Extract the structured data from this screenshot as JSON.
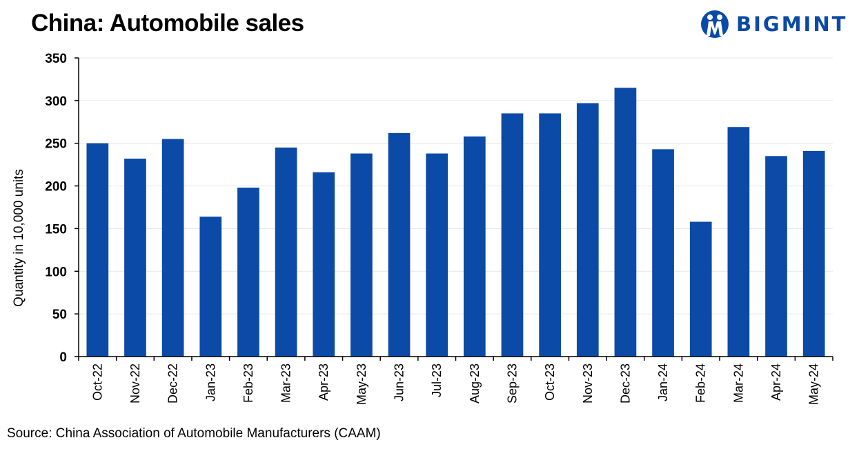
{
  "header": {
    "title": "China: Automobile sales",
    "logo_text": "BIGMINT"
  },
  "footer": {
    "source": "Source: China Association of Automobile Manufacturers (CAAM)"
  },
  "colors": {
    "bar": "#0b4aa6",
    "grid": "#e6e6e6",
    "axis": "#000000"
  },
  "chart_data": {
    "type": "bar",
    "title": "China: Automobile sales",
    "xlabel": "",
    "ylabel": "Quantity in 10,000 units",
    "ylim": [
      0,
      350
    ],
    "yticks": [
      0,
      50,
      100,
      150,
      200,
      250,
      300,
      350
    ],
    "grid": true,
    "categories": [
      "Oct-22",
      "Nov-22",
      "Dec-22",
      "Jan-23",
      "Feb-23",
      "Mar-23",
      "Apr-23",
      "May-23",
      "Jun-23",
      "Jul-23",
      "Aug-23",
      "Sep-23",
      "Oct-23",
      "Nov-23",
      "Dec-23",
      "Jan-24",
      "Feb-24",
      "Mar-24",
      "Apr-24",
      "May-24"
    ],
    "values": [
      250,
      232,
      255,
      164,
      198,
      245,
      216,
      238,
      262,
      238,
      258,
      285,
      285,
      297,
      315,
      243,
      158,
      269,
      235,
      241
    ]
  }
}
